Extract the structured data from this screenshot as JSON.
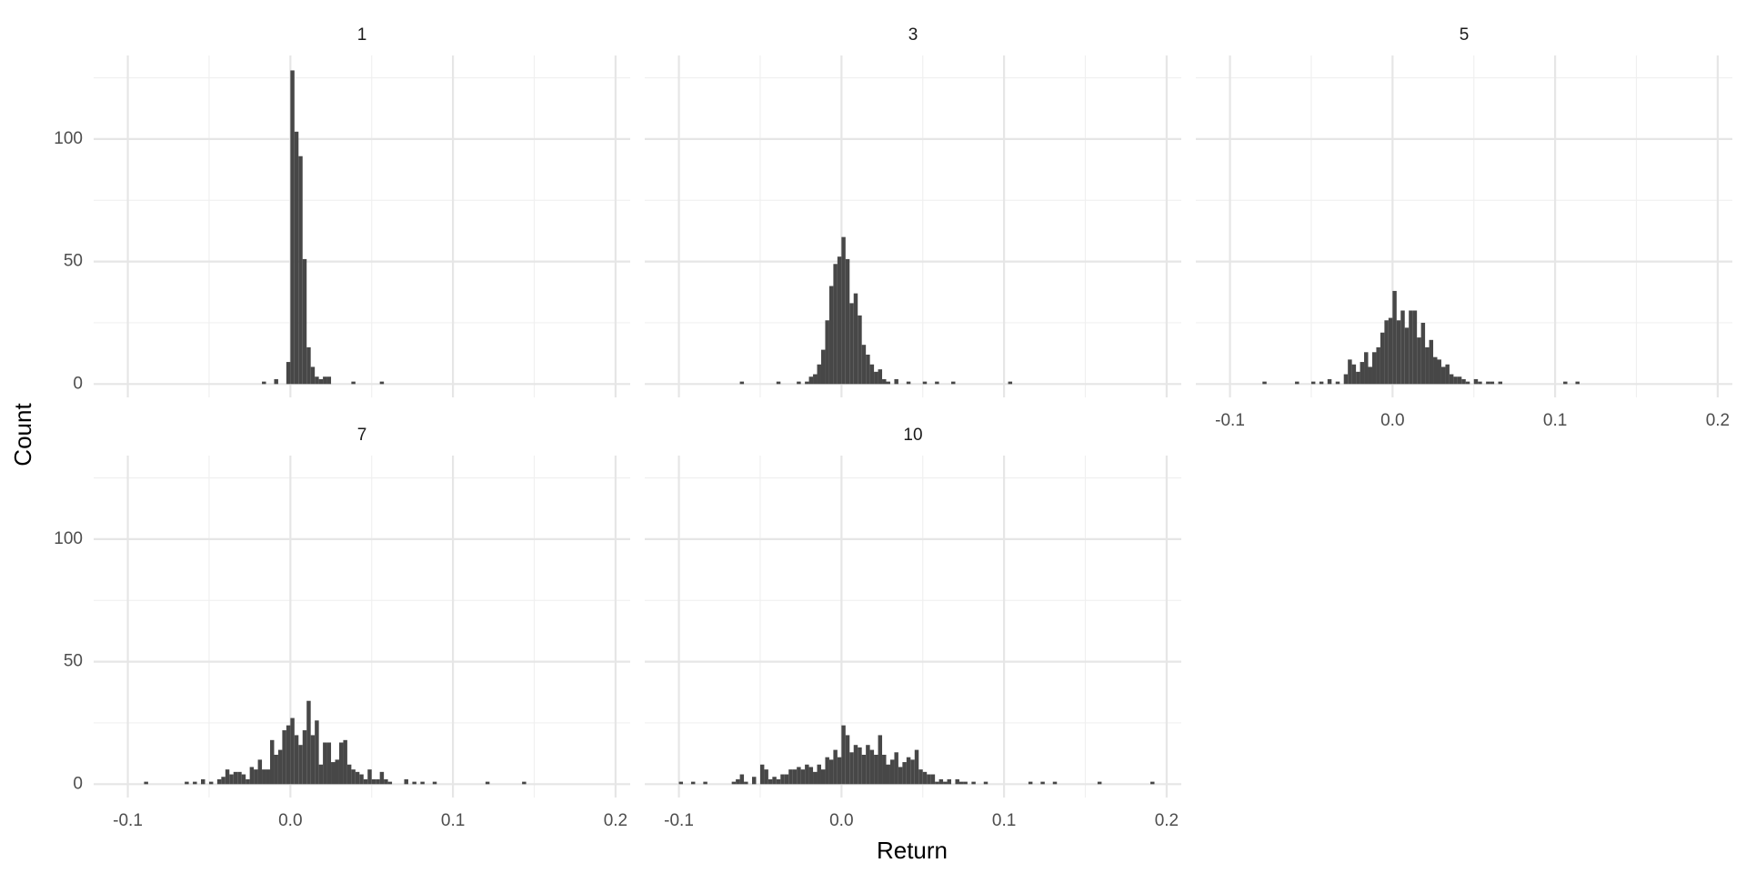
{
  "chart_data": {
    "type": "histogram",
    "xlabel": "Return",
    "ylabel": "Count",
    "color": "#474747",
    "grid": true,
    "xlim": [
      -0.121,
      0.209
    ],
    "ylim": [
      -5.45,
      134.1
    ],
    "xticks": [
      -0.1,
      {
        "value": 0,
        "label": "0.0"
      },
      0.1,
      0.2
    ],
    "yticks": [
      0,
      50,
      100
    ],
    "minor_xticks": [
      -0.05,
      0.05,
      0.15
    ],
    "minor_yticks": [
      25,
      75,
      125
    ],
    "facets": [
      {
        "title": "1",
        "bins": [
          -0.0175,
          -0.015,
          -0.0125,
          -0.01,
          -0.0075,
          -0.005,
          -0.0025,
          0,
          0.0025,
          0.005,
          0.0075,
          0.01,
          0.0125,
          0.015,
          0.0175,
          0.02,
          0.0225,
          0.025,
          0.0275,
          0.03,
          0.0325,
          0.035,
          0.0375,
          0.04,
          0.0425,
          0.045,
          0.0475,
          0.05,
          0.0525,
          0.055,
          0.0575,
          0.06
        ],
        "counts": [
          1,
          0,
          0,
          2,
          0,
          0,
          9,
          128,
          103,
          93,
          51,
          15,
          7,
          3,
          2,
          3,
          3,
          0,
          0,
          0,
          0,
          0,
          1,
          0,
          0,
          0,
          0,
          0,
          0,
          1,
          0
        ]
      },
      {
        "title": "3",
        "bins": [
          -0.0625,
          -0.06,
          -0.0575,
          -0.055,
          -0.0525,
          -0.05,
          -0.0475,
          -0.045,
          -0.0425,
          -0.04,
          -0.0375,
          -0.035,
          -0.0325,
          -0.03,
          -0.0275,
          -0.025,
          -0.0225,
          -0.02,
          -0.0175,
          -0.015,
          -0.0125,
          -0.01,
          -0.0075,
          -0.005,
          -0.0025,
          0,
          0.0025,
          0.005,
          0.0075,
          0.01,
          0.0125,
          0.015,
          0.0175,
          0.02,
          0.0225,
          0.025,
          0.0275,
          0.03,
          0.0325,
          0.035,
          0.0375,
          0.04,
          0.0425,
          0.045,
          0.0475,
          0.05,
          0.0525,
          0.055,
          0.0575,
          0.06,
          0.0625,
          0.065,
          0.0675,
          0.07,
          0.0725,
          0.075,
          0.0775,
          0.08,
          0.0825,
          0.085,
          0.0875,
          0.09,
          0.0925,
          0.095,
          0.0975,
          0.1,
          0.1025,
          0.105
        ],
        "counts": [
          1,
          0,
          0,
          0,
          0,
          0,
          0,
          0,
          0,
          1,
          0,
          0,
          0,
          0,
          1,
          0,
          1,
          3,
          4,
          8,
          14,
          26,
          40,
          49,
          52,
          60,
          51,
          33,
          37,
          28,
          16,
          12,
          8,
          5,
          6,
          2,
          1,
          0,
          2,
          0,
          0,
          1,
          0,
          0,
          0,
          1,
          0,
          0,
          1,
          0,
          0,
          0,
          1,
          0,
          0,
          0,
          0,
          0,
          0,
          0,
          0,
          0,
          0,
          0,
          0,
          0,
          1
        ]
      },
      {
        "title": "5",
        "bins": [
          -0.08,
          -0.0775,
          -0.075,
          -0.0725,
          -0.07,
          -0.0675,
          -0.065,
          -0.0625,
          -0.06,
          -0.0575,
          -0.055,
          -0.0525,
          -0.05,
          -0.0475,
          -0.045,
          -0.0425,
          -0.04,
          -0.0375,
          -0.035,
          -0.0325,
          -0.03,
          -0.0275,
          -0.025,
          -0.0225,
          -0.02,
          -0.0175,
          -0.015,
          -0.0125,
          -0.01,
          -0.0075,
          -0.005,
          -0.0025,
          0,
          0.0025,
          0.005,
          0.0075,
          0.01,
          0.0125,
          0.015,
          0.0175,
          0.02,
          0.0225,
          0.025,
          0.0275,
          0.03,
          0.0325,
          0.035,
          0.0375,
          0.04,
          0.0425,
          0.045,
          0.0475,
          0.05,
          0.0525,
          0.055,
          0.0575,
          0.06,
          0.0625,
          0.065,
          0.0675,
          0.07,
          0.0725,
          0.075,
          0.0775,
          0.08,
          0.0825,
          0.085,
          0.0875,
          0.09,
          0.0925,
          0.095,
          0.0975,
          0.1,
          0.1025,
          0.105,
          0.1075,
          0.11,
          0.1125,
          0.115
        ],
        "counts": [
          1,
          0,
          0,
          0,
          0,
          0,
          0,
          0,
          1,
          0,
          0,
          0,
          1,
          0,
          1,
          0,
          2,
          0,
          1,
          0,
          4,
          10,
          8,
          5,
          9,
          13,
          7,
          13,
          15,
          21,
          26,
          27,
          38,
          26,
          30,
          23,
          30,
          30,
          19,
          25,
          15,
          18,
          11,
          10,
          7,
          8,
          4,
          3,
          3,
          2,
          1,
          0,
          2,
          1,
          0,
          1,
          1,
          0,
          1,
          0,
          0,
          0,
          0,
          0,
          0,
          0,
          0,
          0,
          0,
          0,
          0,
          0,
          0,
          0,
          1,
          0,
          0,
          1
        ]
      },
      {
        "title": "7",
        "bins": [
          -0.09,
          -0.0875,
          -0.085,
          -0.0825,
          -0.08,
          -0.0775,
          -0.075,
          -0.0725,
          -0.07,
          -0.0675,
          -0.065,
          -0.0625,
          -0.06,
          -0.0575,
          -0.055,
          -0.0525,
          -0.05,
          -0.0475,
          -0.045,
          -0.0425,
          -0.04,
          -0.0375,
          -0.035,
          -0.0325,
          -0.03,
          -0.0275,
          -0.025,
          -0.0225,
          -0.02,
          -0.0175,
          -0.015,
          -0.0125,
          -0.01,
          -0.0075,
          -0.005,
          -0.0025,
          0,
          0.0025,
          0.005,
          0.0075,
          0.01,
          0.0125,
          0.015,
          0.0175,
          0.02,
          0.0225,
          0.025,
          0.0275,
          0.03,
          0.0325,
          0.035,
          0.0375,
          0.04,
          0.0425,
          0.045,
          0.0475,
          0.05,
          0.0525,
          0.055,
          0.0575,
          0.06,
          0.0625,
          0.065,
          0.0675,
          0.07,
          0.0725,
          0.075,
          0.0775,
          0.08,
          0.0825,
          0.085,
          0.0875,
          0.09,
          0.0925,
          0.095,
          0.0975,
          0.1,
          0.1025,
          0.105,
          0.1075,
          0.11,
          0.1125,
          0.115,
          0.1175,
          0.12,
          0.1225,
          0.125,
          0.1275,
          0.13,
          0.1325,
          0.135,
          0.1375,
          0.14,
          0.1425,
          0.145
        ],
        "counts": [
          1,
          0,
          0,
          0,
          0,
          0,
          0,
          0,
          0,
          0,
          1,
          0,
          1,
          0,
          2,
          0,
          1,
          0,
          2,
          3,
          6,
          4,
          5,
          5,
          4,
          2,
          7,
          6,
          10,
          6,
          6,
          18,
          12,
          14,
          22,
          24,
          27,
          20,
          16,
          22,
          34,
          20,
          26,
          8,
          17,
          17,
          9,
          10,
          17,
          18,
          8,
          6,
          5,
          4,
          2,
          6,
          2,
          2,
          5,
          2,
          1,
          0,
          0,
          0,
          2,
          0,
          1,
          0,
          1,
          0,
          0,
          1,
          0,
          0,
          0,
          0,
          0,
          0,
          0,
          0,
          0,
          0,
          0,
          0,
          1,
          0,
          0,
          0,
          0,
          0,
          0,
          0,
          0,
          1
        ]
      },
      {
        "title": "10",
        "bins": [
          -0.1,
          -0.0975,
          -0.095,
          -0.0925,
          -0.09,
          -0.0875,
          -0.085,
          -0.0825,
          -0.08,
          -0.0775,
          -0.075,
          -0.0725,
          -0.07,
          -0.0675,
          -0.065,
          -0.0625,
          -0.06,
          -0.0575,
          -0.055,
          -0.0525,
          -0.05,
          -0.0475,
          -0.045,
          -0.0425,
          -0.04,
          -0.0375,
          -0.035,
          -0.0325,
          -0.03,
          -0.0275,
          -0.025,
          -0.0225,
          -0.02,
          -0.0175,
          -0.015,
          -0.0125,
          -0.01,
          -0.0075,
          -0.005,
          -0.0025,
          0,
          0.0025,
          0.005,
          0.0075,
          0.01,
          0.0125,
          0.015,
          0.0175,
          0.02,
          0.0225,
          0.025,
          0.0275,
          0.03,
          0.0325,
          0.035,
          0.0375,
          0.04,
          0.0425,
          0.045,
          0.0475,
          0.05,
          0.0525,
          0.055,
          0.0575,
          0.06,
          0.0625,
          0.065,
          0.0675,
          0.07,
          0.0725,
          0.075,
          0.0775,
          0.08,
          0.0825,
          0.085,
          0.0875,
          0.09,
          0.0925,
          0.095,
          0.0975,
          0.1,
          0.1025,
          0.105,
          0.1075,
          0.11,
          0.1125,
          0.115,
          0.1175,
          0.12,
          0.1225,
          0.125,
          0.1275,
          0.13,
          0.1325,
          0.135,
          0.1375,
          0.14,
          0.1425,
          0.145,
          0.1475,
          0.15,
          0.1525,
          0.155,
          0.1575,
          0.16,
          0.1625,
          0.165,
          0.1675,
          0.17,
          0.1725,
          0.175,
          0.1775,
          0.18,
          0.1825,
          0.185,
          0.1875,
          0.19,
          0.1925,
          0.195
        ],
        "counts": [
          1,
          0,
          0,
          1,
          0,
          0,
          1,
          0,
          0,
          0,
          0,
          0,
          0,
          1,
          2,
          4,
          1,
          0,
          3,
          0,
          8,
          6,
          2,
          3,
          2,
          4,
          4,
          6,
          6,
          7,
          6,
          8,
          7,
          5,
          8,
          6,
          11,
          10,
          14,
          11,
          24,
          20,
          13,
          16,
          15,
          12,
          16,
          14,
          12,
          20,
          12,
          8,
          10,
          13,
          7,
          9,
          11,
          10,
          14,
          6,
          5,
          4,
          4,
          1,
          2,
          1,
          2,
          0,
          2,
          1,
          1,
          0,
          1,
          0,
          0,
          1,
          0,
          0,
          0,
          0,
          0,
          0,
          0,
          0,
          0,
          0,
          1,
          0,
          0,
          1,
          0,
          0,
          1,
          0,
          0,
          0,
          0,
          0,
          0,
          0,
          0,
          0,
          0,
          1,
          0,
          0,
          0,
          0,
          0,
          0,
          0,
          0,
          0,
          0,
          0,
          0,
          1,
          0
        ]
      }
    ]
  }
}
